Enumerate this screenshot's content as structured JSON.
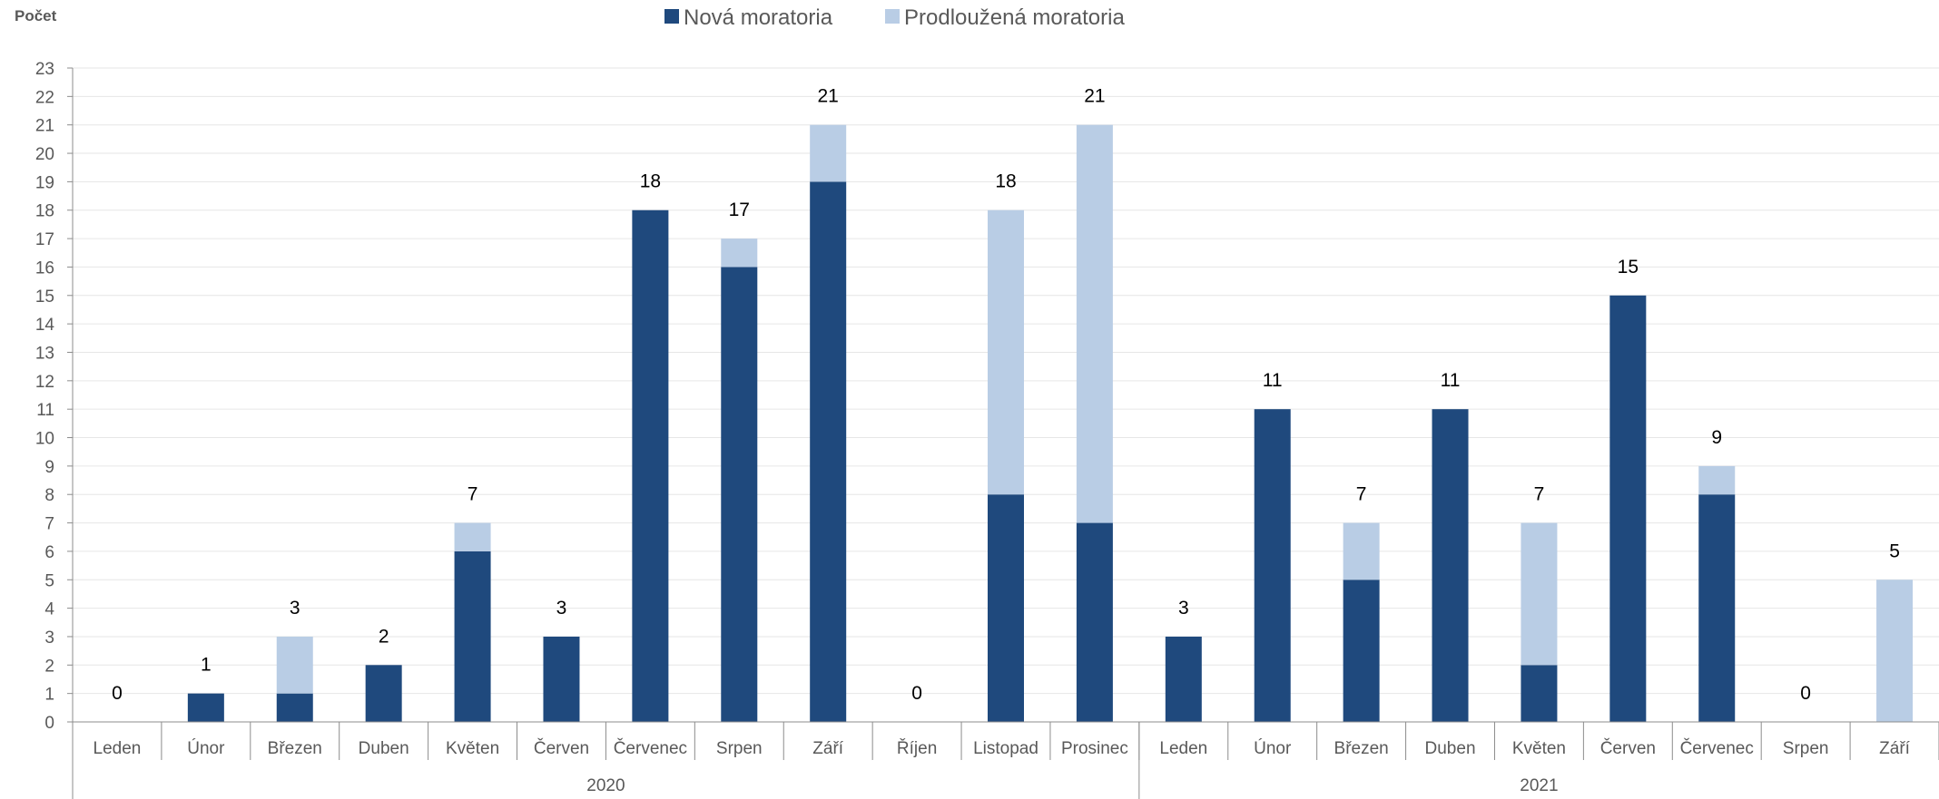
{
  "chart_data": {
    "type": "bar",
    "stacked": true,
    "ylabel": "Počet",
    "ylim": [
      0,
      23
    ],
    "ytick_step": 1,
    "grid": true,
    "legend_position": "top-center",
    "categories": [
      "Leden",
      "Únor",
      "Březen",
      "Duben",
      "Květen",
      "Červen",
      "Červenec",
      "Srpen",
      "Září",
      "Říjen",
      "Listopad",
      "Prosinec",
      "Leden",
      "Únor",
      "Březen",
      "Duben",
      "Květen",
      "Červen",
      "Červenec",
      "Srpen",
      "Září"
    ],
    "groups": [
      {
        "label": "2020",
        "count": 12
      },
      {
        "label": "2021",
        "count": 9
      }
    ],
    "series": [
      {
        "name": "Nová moratoria",
        "color": "#1F497D",
        "values": [
          0,
          1,
          1,
          2,
          6,
          3,
          18,
          16,
          19,
          0,
          8,
          7,
          3,
          11,
          5,
          11,
          2,
          15,
          8,
          0,
          0
        ]
      },
      {
        "name": "Prodloužená moratoria",
        "color": "#B9CDE5",
        "values": [
          0,
          0,
          2,
          0,
          1,
          0,
          0,
          1,
          2,
          0,
          10,
          14,
          0,
          0,
          2,
          0,
          5,
          0,
          1,
          0,
          5
        ]
      }
    ],
    "totals": [
      0,
      1,
      3,
      2,
      7,
      3,
      18,
      17,
      21,
      0,
      18,
      21,
      3,
      11,
      7,
      11,
      7,
      15,
      9,
      0,
      5
    ]
  }
}
